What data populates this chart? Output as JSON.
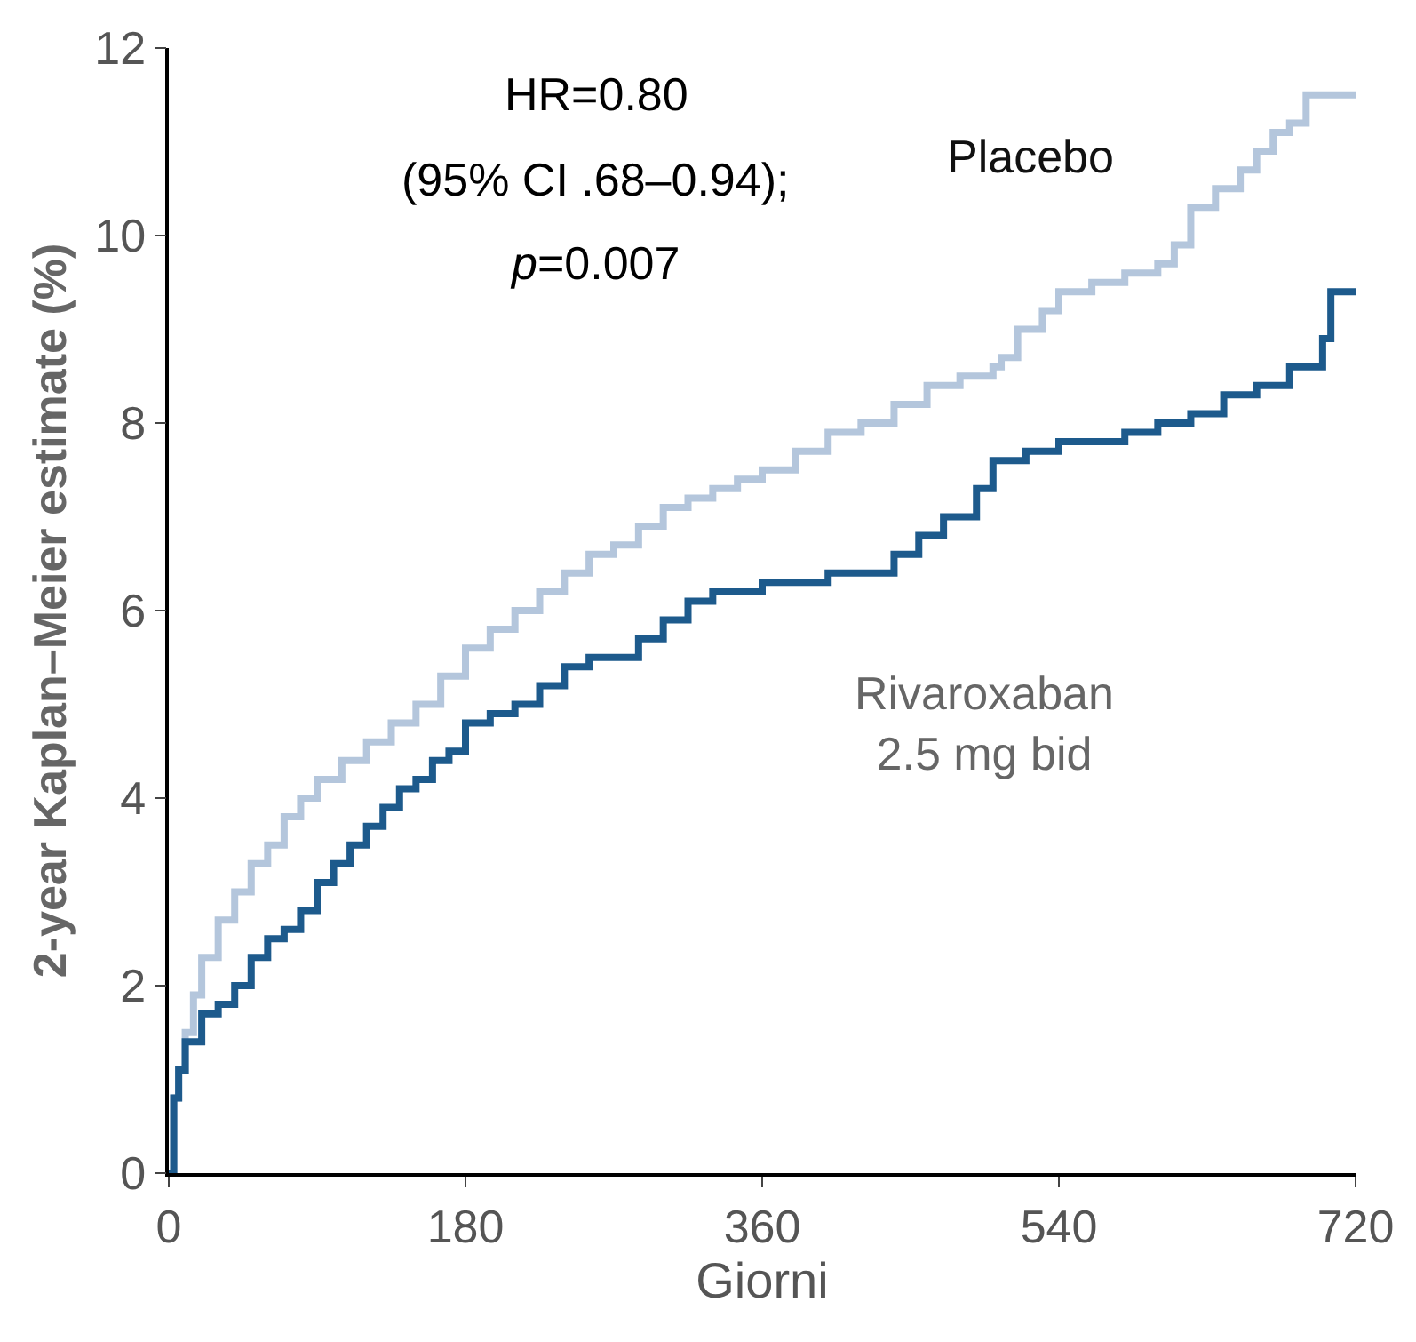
{
  "chart_data": {
    "type": "step",
    "xlabel": "Giorni",
    "ylabel": "2-year Kaplan–Meier estimate (%)",
    "xlim": [
      0,
      720
    ],
    "xticks": [
      0,
      180,
      360,
      540,
      720
    ],
    "ylim": [
      0,
      12
    ],
    "yticks": [
      0,
      2,
      4,
      6,
      8,
      10,
      12
    ],
    "legend": false,
    "annotations": [
      "HR=0.80",
      "(95% CI .68–0.94);",
      "p=0.007"
    ],
    "series": [
      {
        "name": "Placebo",
        "color": "#b4c6dc",
        "x": [
          0,
          3,
          6,
          10,
          15,
          20,
          30,
          40,
          50,
          60,
          70,
          80,
          90,
          105,
          120,
          135,
          150,
          165,
          180,
          195,
          210,
          225,
          240,
          255,
          270,
          285,
          300,
          315,
          330,
          345,
          360,
          380,
          400,
          420,
          440,
          460,
          480,
          500,
          505,
          515,
          530,
          540,
          560,
          580,
          600,
          610,
          620,
          635,
          650,
          660,
          670,
          680,
          690,
          720
        ],
        "values": [
          0,
          0.8,
          1.1,
          1.5,
          1.9,
          2.3,
          2.7,
          3.0,
          3.3,
          3.5,
          3.8,
          4.0,
          4.2,
          4.4,
          4.6,
          4.8,
          5.0,
          5.3,
          5.6,
          5.8,
          6.0,
          6.2,
          6.4,
          6.6,
          6.7,
          6.9,
          7.1,
          7.2,
          7.3,
          7.4,
          7.5,
          7.7,
          7.9,
          8.0,
          8.2,
          8.4,
          8.5,
          8.6,
          8.7,
          9.0,
          9.2,
          9.4,
          9.5,
          9.6,
          9.7,
          9.9,
          10.3,
          10.5,
          10.7,
          10.9,
          11.1,
          11.2,
          11.5,
          11.5
        ]
      },
      {
        "name": "Rivaroxaban 2.5 mg bid",
        "color": "#1d5a8c",
        "x": [
          0,
          3,
          6,
          10,
          20,
          30,
          40,
          50,
          60,
          70,
          80,
          90,
          100,
          110,
          120,
          130,
          140,
          150,
          160,
          170,
          180,
          195,
          210,
          225,
          240,
          255,
          270,
          285,
          300,
          315,
          330,
          345,
          360,
          380,
          400,
          420,
          440,
          455,
          470,
          480,
          490,
          500,
          520,
          540,
          560,
          580,
          600,
          620,
          640,
          660,
          680,
          690,
          700,
          705,
          720
        ],
        "values": [
          0,
          0.8,
          1.1,
          1.4,
          1.7,
          1.8,
          2.0,
          2.3,
          2.5,
          2.6,
          2.8,
          3.1,
          3.3,
          3.5,
          3.7,
          3.9,
          4.1,
          4.2,
          4.4,
          4.5,
          4.8,
          4.9,
          5.0,
          5.2,
          5.4,
          5.5,
          5.5,
          5.7,
          5.9,
          6.1,
          6.2,
          6.2,
          6.3,
          6.3,
          6.4,
          6.4,
          6.6,
          6.8,
          7.0,
          7.0,
          7.3,
          7.6,
          7.7,
          7.8,
          7.8,
          7.9,
          8.0,
          8.1,
          8.3,
          8.4,
          8.6,
          8.6,
          8.9,
          9.4,
          9.4
        ]
      }
    ]
  }
}
